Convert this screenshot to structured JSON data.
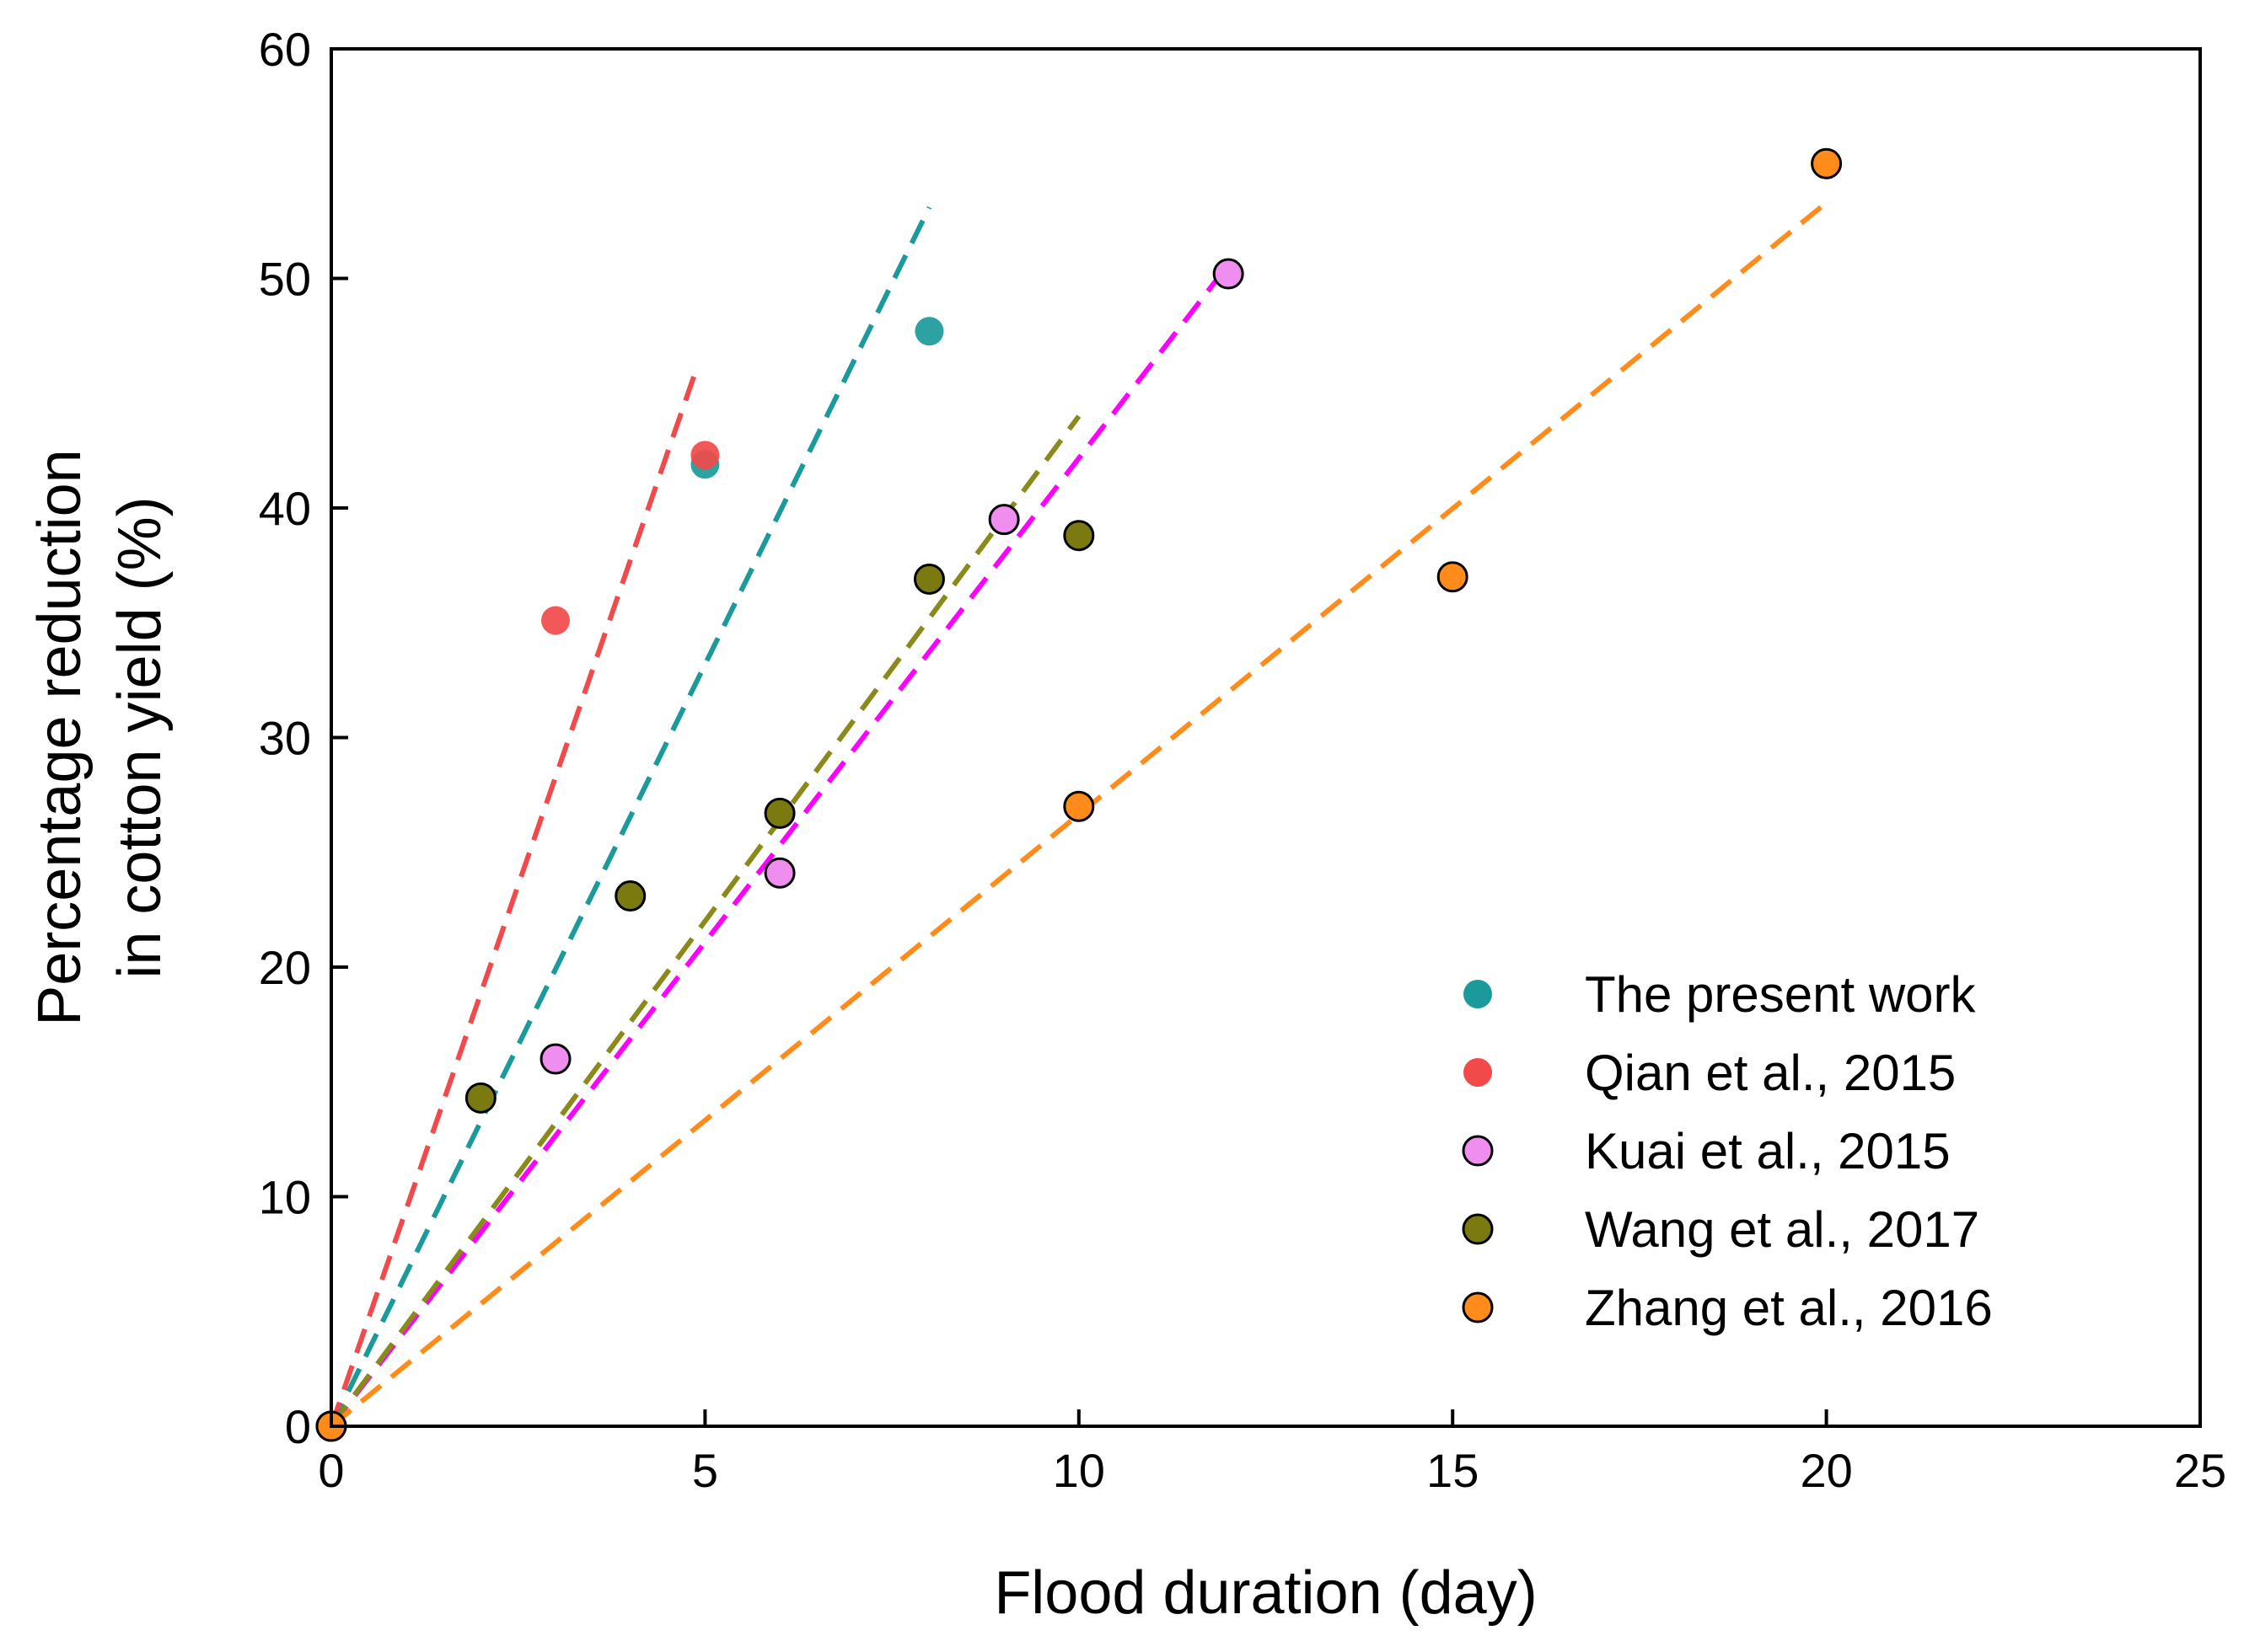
{
  "chart_data": {
    "type": "scatter",
    "title": "",
    "xlabel": "Flood duration (day)",
    "ylabel_lines": [
      "Percentage reduction",
      "in cotton yield (%)"
    ],
    "xlim": [
      0,
      25
    ],
    "ylim": [
      0,
      60
    ],
    "xticks": [
      0,
      5,
      10,
      15,
      20,
      25
    ],
    "yticks": [
      0,
      10,
      20,
      30,
      40,
      50,
      60
    ],
    "grid": false,
    "legend_position": "bottom-right",
    "series": [
      {
        "name": "The present work",
        "color": "#1a9a9a",
        "marker_outline": false,
        "points": [
          [
            0,
            0
          ],
          [
            5,
            41.9
          ],
          [
            8,
            47.7
          ]
        ],
        "fit_line": [
          [
            0,
            0
          ],
          [
            8,
            53.1
          ]
        ]
      },
      {
        "name": "Qian et al., 2015",
        "color": "#f24a4a",
        "marker_outline": false,
        "points": [
          [
            0,
            0
          ],
          [
            3,
            35.1
          ],
          [
            5,
            42.3
          ]
        ],
        "fit_line": [
          [
            0,
            0
          ],
          [
            4.9,
            46.2
          ]
        ]
      },
      {
        "name": "Kuai  et al., 2015",
        "color": "#f08ef0",
        "line_color": "#ff00ff",
        "marker_outline": true,
        "points": [
          [
            0,
            0
          ],
          [
            3,
            16.0
          ],
          [
            6,
            24.1
          ],
          [
            9,
            39.5
          ],
          [
            12,
            50.2
          ]
        ],
        "fit_line": [
          [
            0,
            0
          ],
          [
            12,
            50.6
          ]
        ]
      },
      {
        "name": "Wang et al., 2017",
        "color": "#7a7a10",
        "line_color": "#8a8a1a",
        "marker_outline": true,
        "points": [
          [
            2,
            14.3
          ],
          [
            4,
            23.1
          ],
          [
            6,
            26.7
          ],
          [
            8,
            36.9
          ],
          [
            10,
            38.8
          ]
        ],
        "fit_line": [
          [
            0,
            0
          ],
          [
            10,
            44.0
          ]
        ]
      },
      {
        "name": "Zhang et al., 2016",
        "color": "#ff8c1a",
        "marker_outline": true,
        "points": [
          [
            0,
            0
          ],
          [
            10,
            27.0
          ],
          [
            15,
            37.0
          ],
          [
            20,
            55.0
          ]
        ],
        "fit_line": [
          [
            0,
            0
          ],
          [
            20,
            53.3
          ]
        ]
      }
    ]
  }
}
